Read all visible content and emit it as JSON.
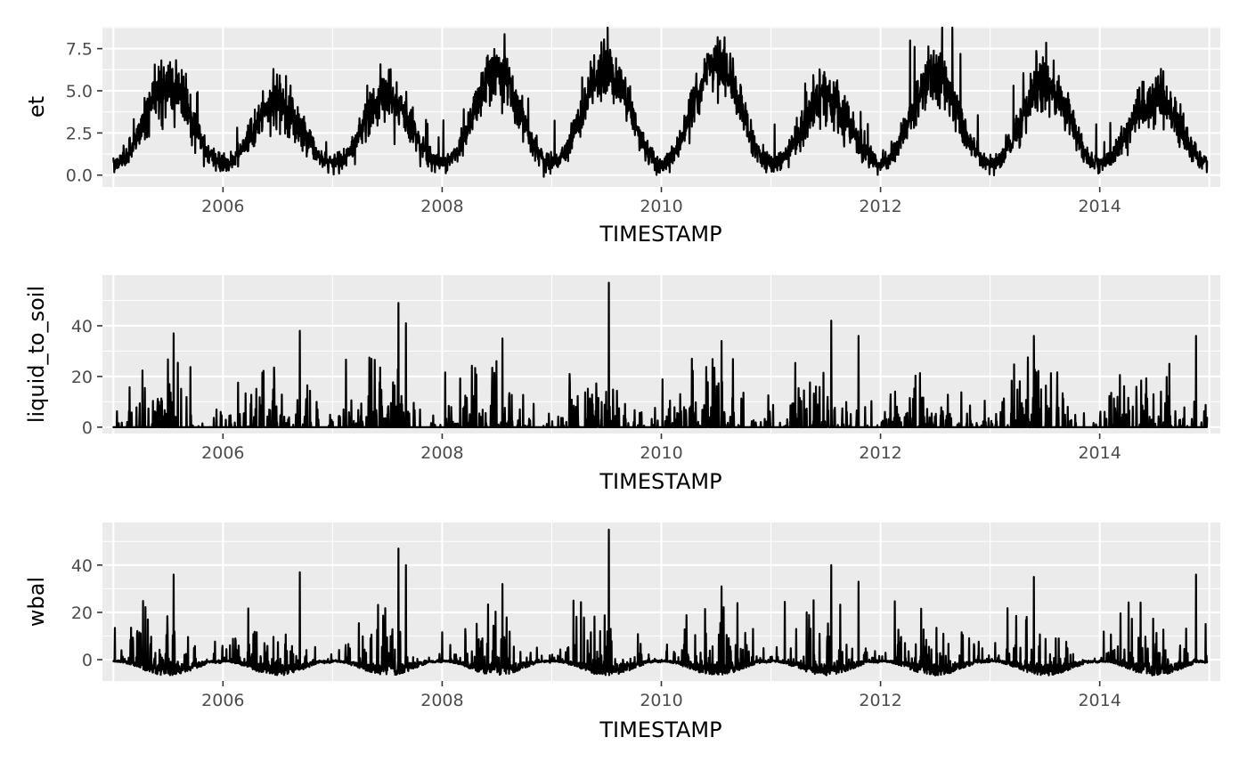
{
  "chart_data": [
    {
      "type": "line",
      "series_key": "et",
      "xlabel": "TIMESTAMP",
      "ylabel": "et",
      "xlim": [
        2004.9,
        2015.1
      ],
      "ylim": [
        -0.7,
        8.8
      ],
      "x_ticks": [
        2006,
        2008,
        2010,
        2012,
        2014
      ],
      "x_tick_labels": [
        "2006",
        "2008",
        "2010",
        "2012",
        "2014"
      ],
      "y_ticks": [
        0,
        2.5,
        5,
        7.5
      ],
      "y_tick_labels": [
        "0.0",
        "2.5",
        "5.0",
        "7.5"
      ],
      "grid": true,
      "pattern": "seasonal",
      "annual_peaks": [
        5.2,
        4.3,
        4.7,
        6.0,
        6.2,
        6.6,
        4.5,
        5.8,
        5.2,
        4.6
      ],
      "annual_max_spikes": [
        6.0,
        5.4,
        7.6,
        7.9,
        8.5,
        8.7,
        6.8,
        8.6,
        7.0,
        5.9
      ],
      "base": 0.7,
      "noise": 0.55,
      "floor": -0.6,
      "series": [
        {
          "x": [
            2005.0,
            2005.55,
            2006.0,
            2006.55,
            2007.0,
            2007.55,
            2008.0,
            2008.55,
            2009.0,
            2009.5,
            2010.0,
            2010.55,
            2011.0,
            2011.6,
            2012.0,
            2012.5,
            2013.0,
            2013.55,
            2014.0,
            2014.6,
            2014.98
          ],
          "values": [
            1.0,
            5.2,
            0.4,
            4.3,
            0.5,
            4.7,
            0.6,
            6.0,
            0.5,
            6.2,
            0.7,
            6.6,
            0.4,
            4.5,
            0.3,
            5.8,
            0.8,
            5.2,
            0.9,
            4.6,
            0.8
          ]
        }
      ]
    },
    {
      "type": "line",
      "series_key": "liquid_to_soil",
      "xlabel": "TIMESTAMP",
      "ylabel": "liquid_to_soil",
      "xlim": [
        2004.9,
        2015.1
      ],
      "ylim": [
        -2.5,
        60
      ],
      "x_ticks": [
        2006,
        2008,
        2010,
        2012,
        2014
      ],
      "x_tick_labels": [
        "2006",
        "2008",
        "2010",
        "2012",
        "2014"
      ],
      "y_ticks": [
        0,
        20,
        40
      ],
      "y_tick_labels": [
        "0",
        "20",
        "40"
      ],
      "grid": true,
      "pattern": "spiky",
      "series": [
        {
          "x": [
            2005.55,
            2006.7,
            2007.6,
            2007.67,
            2008.55,
            2009.52,
            2010.55,
            2011.55,
            2011.8,
            2013.4,
            2014.88
          ],
          "values": [
            37,
            38,
            49,
            41,
            35,
            57,
            34,
            42,
            36,
            36,
            36
          ]
        }
      ]
    },
    {
      "type": "line",
      "series_key": "wbal",
      "xlabel": "TIMESTAMP",
      "ylabel": "wbal",
      "xlim": [
        2004.9,
        2015.1
      ],
      "ylim": [
        -9,
        58
      ],
      "x_ticks": [
        2006,
        2008,
        2010,
        2012,
        2014
      ],
      "x_tick_labels": [
        "2006",
        "2008",
        "2010",
        "2012",
        "2014"
      ],
      "y_ticks": [
        0,
        20,
        40
      ],
      "y_tick_labels": [
        "0",
        "20",
        "40"
      ],
      "grid": true,
      "pattern": "spiky-balance",
      "series": [
        {
          "x": [
            2005.55,
            2006.7,
            2007.6,
            2007.67,
            2008.55,
            2009.52,
            2010.55,
            2011.55,
            2011.8,
            2013.4,
            2014.88
          ],
          "values": [
            36,
            37,
            47,
            40,
            32,
            55,
            31,
            40,
            33,
            35,
            36
          ]
        }
      ]
    }
  ]
}
